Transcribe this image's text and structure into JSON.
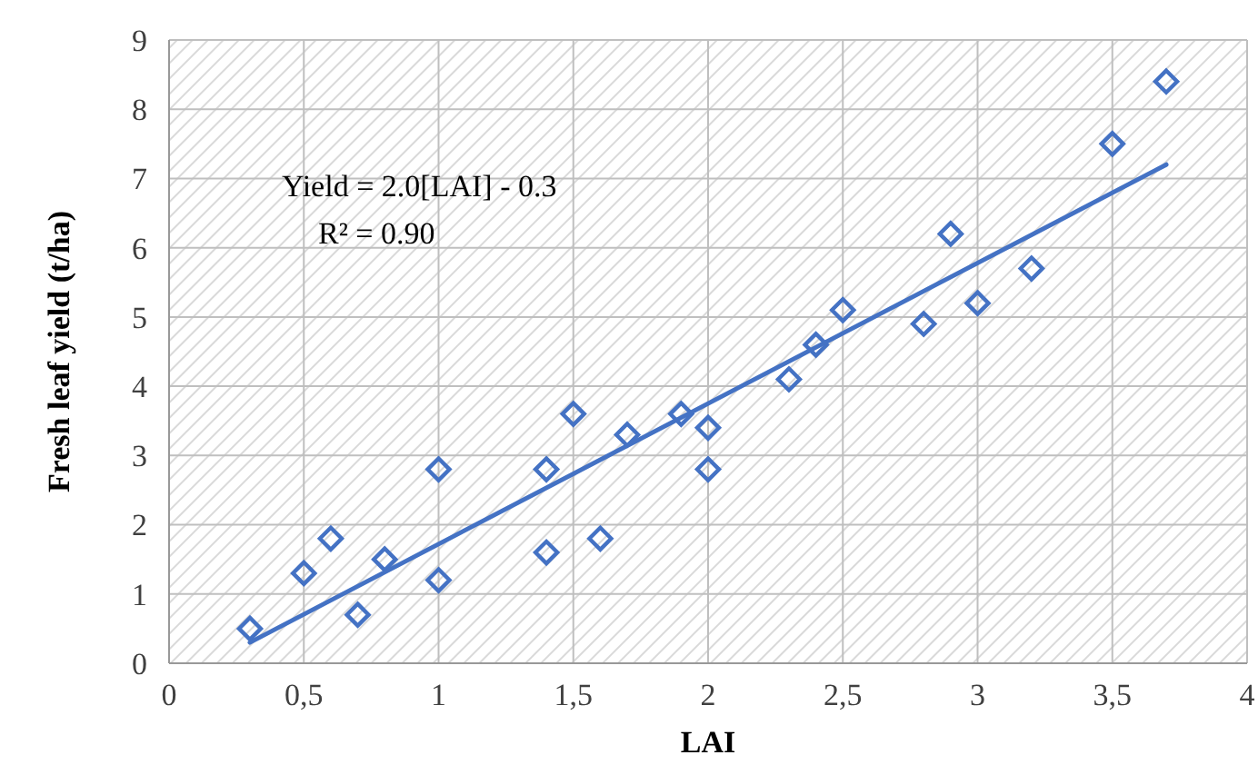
{
  "chart_data": {
    "type": "scatter",
    "xlabel": "LAI",
    "ylabel": "Fresh leaf yield (t/ha)",
    "annotations": [
      "Yield = 2.0[LAI] - 0.3",
      "R² = 0.90"
    ],
    "x": [
      0.3,
      0.5,
      0.6,
      0.7,
      0.8,
      1.0,
      1.0,
      1.4,
      1.4,
      1.5,
      1.6,
      1.7,
      1.9,
      2.0,
      2.0,
      2.3,
      2.4,
      2.5,
      2.8,
      2.9,
      3.0,
      3.2,
      3.5,
      3.7
    ],
    "series": [
      {
        "color": "#4472c4",
        "marker": "diamond",
        "values": [
          0.5,
          1.3,
          1.8,
          0.7,
          1.5,
          2.8,
          1.2,
          2.8,
          1.6,
          3.6,
          1.8,
          3.3,
          3.6,
          3.4,
          2.8,
          4.1,
          4.6,
          5.1,
          4.9,
          6.2,
          5.2,
          5.7,
          7.5,
          8.4
        ]
      },
      {
        "type": "line",
        "color": "#4472c4",
        "marker": "none",
        "line_style": "solid",
        "x": [
          0.3,
          3.7
        ],
        "values": [
          0.3,
          7.2
        ]
      }
    ],
    "xlim": [
      0,
      4
    ],
    "xticks": [
      0,
      {
        "value": 0.5,
        "label": "0,5"
      },
      1,
      {
        "value": 1.5,
        "label": "1,5"
      },
      2,
      {
        "value": 2.5,
        "label": "2,5"
      },
      3,
      {
        "value": 3.5,
        "label": "3,5"
      },
      4
    ],
    "ylim": [
      0,
      9
    ],
    "yticks": [
      0,
      1,
      2,
      3,
      4,
      5,
      6,
      7,
      8,
      9
    ],
    "grid": true
  }
}
